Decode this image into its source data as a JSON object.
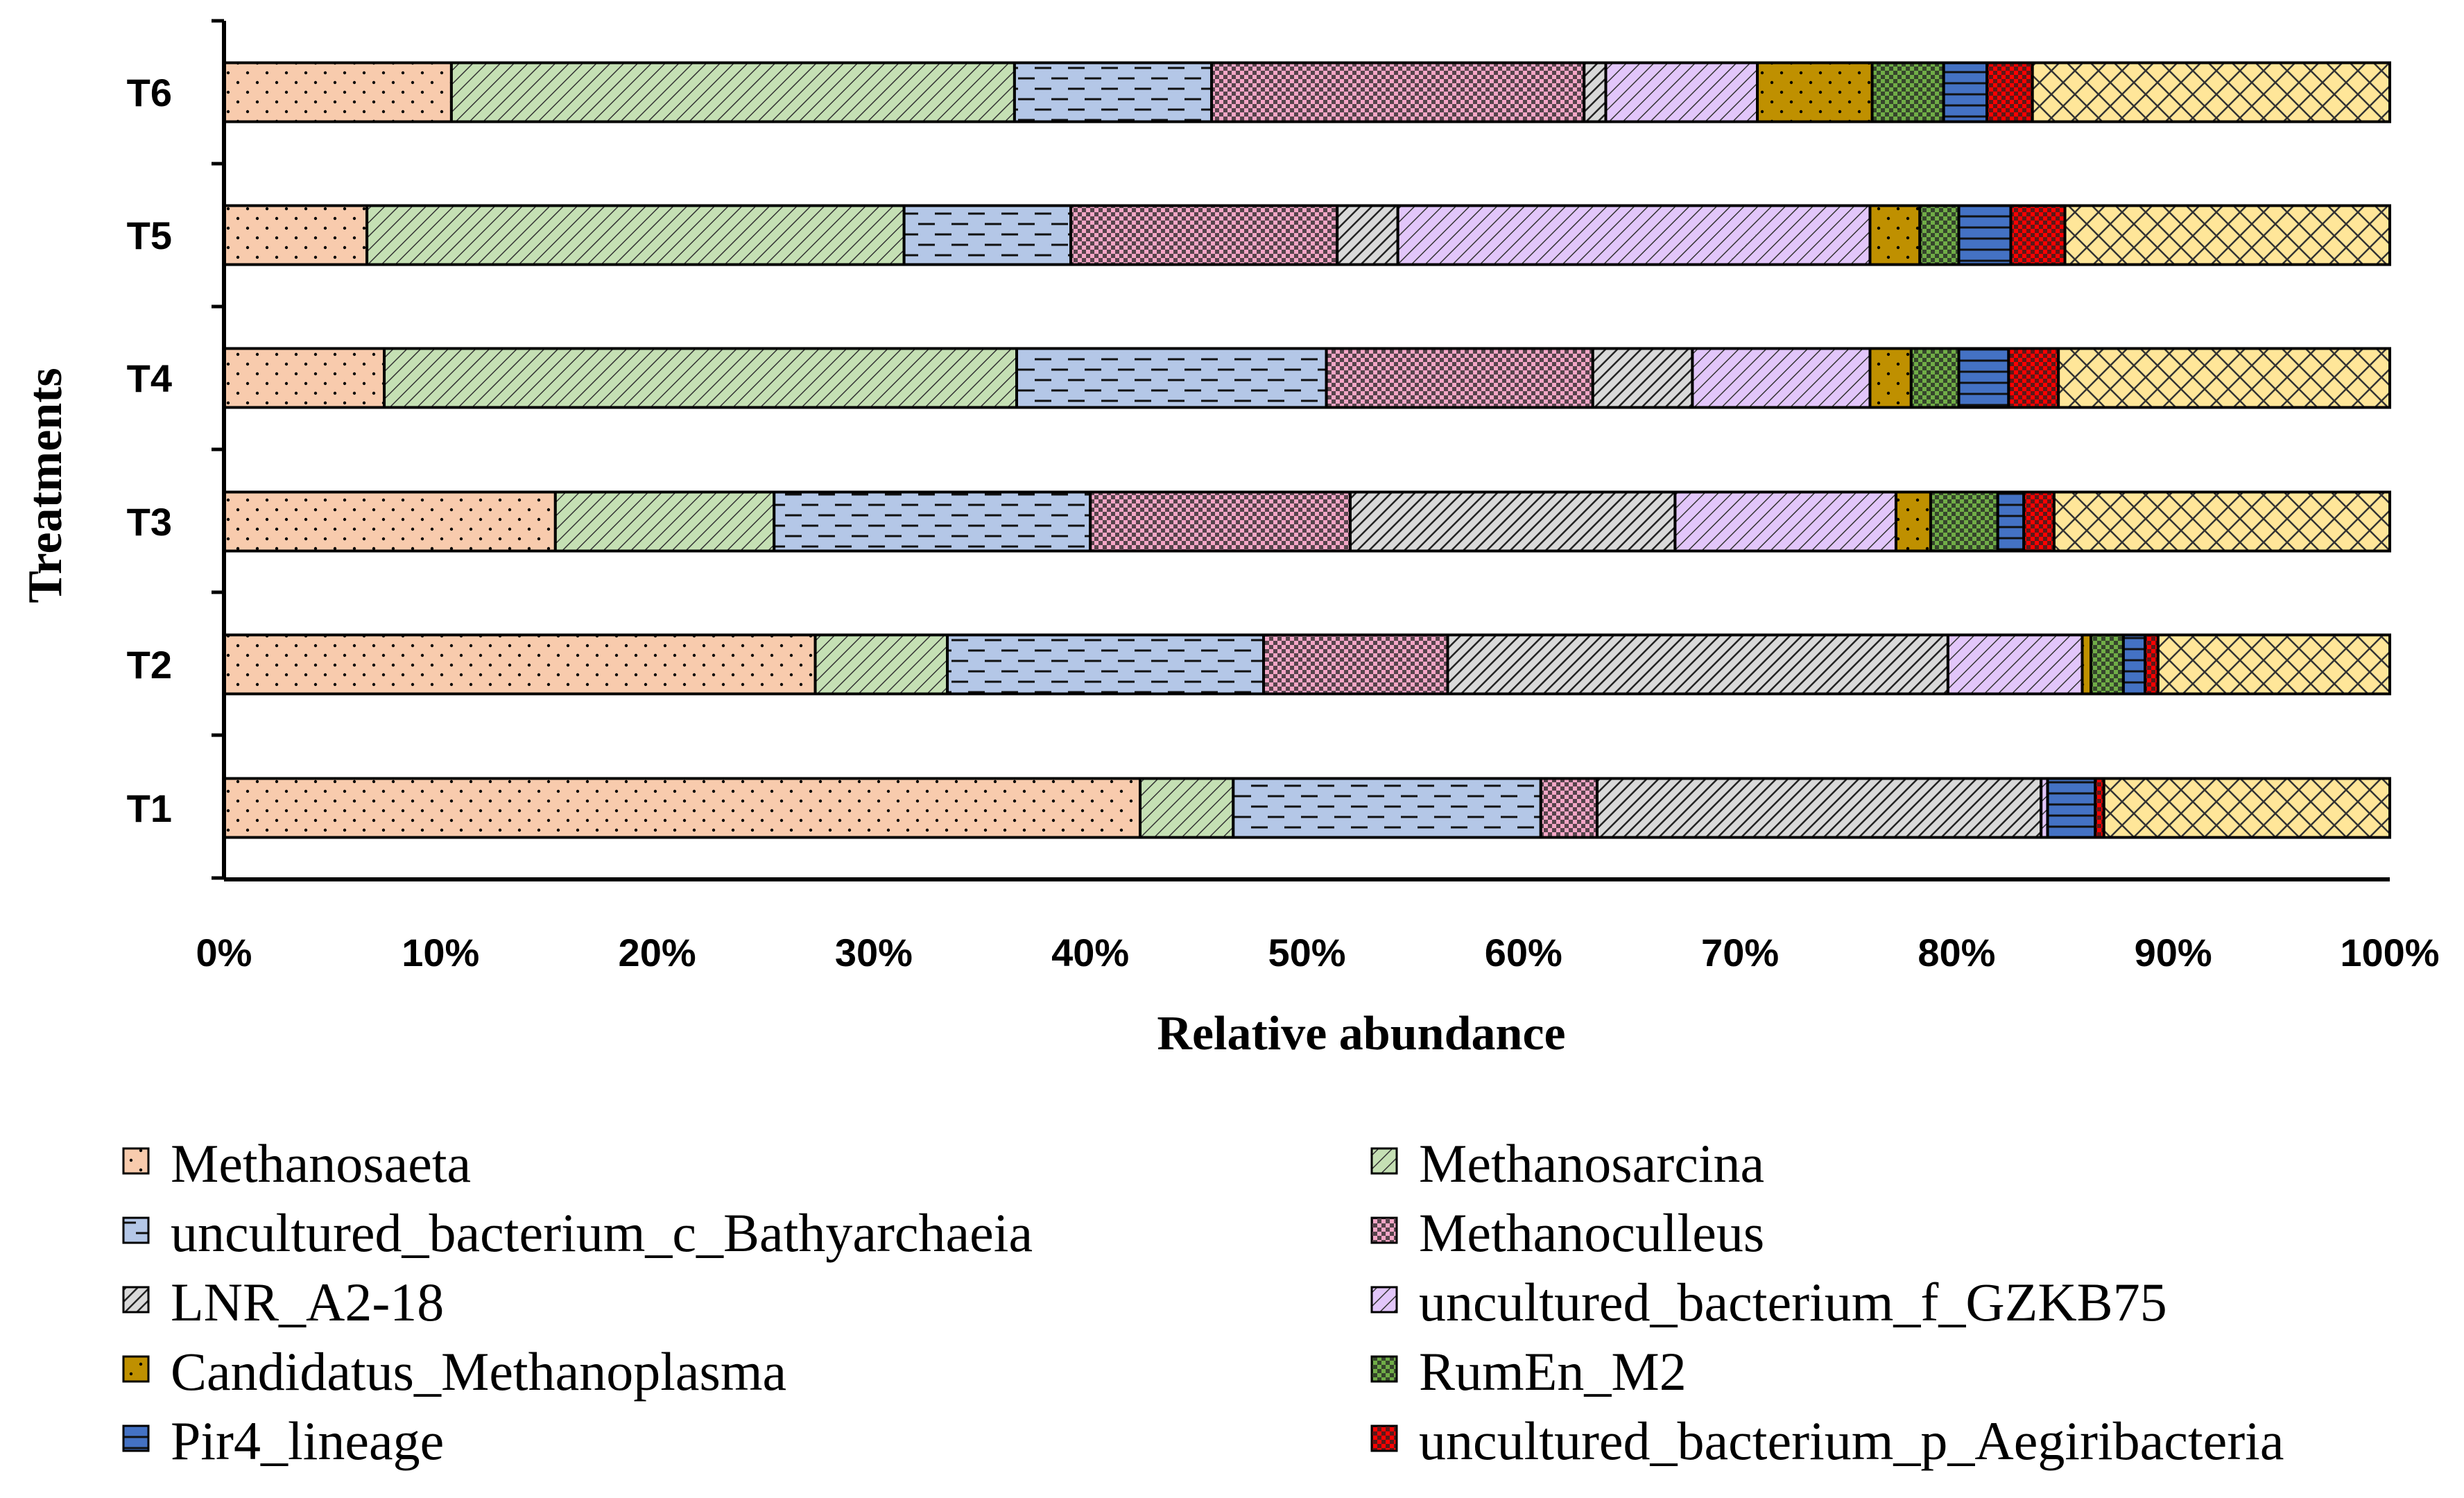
{
  "chart_data": {
    "type": "bar",
    "orientation": "horizontal",
    "stacked": "percent",
    "categories": [
      "T1",
      "T2",
      "T3",
      "T4",
      "T5",
      "T6"
    ],
    "series": [
      {
        "name": "Methanosaeta",
        "color": "#F8CBAD",
        "pattern": "dots",
        "values": [
          42.3,
          27.3,
          15.3,
          7.4,
          6.6,
          10.5
        ]
      },
      {
        "name": "Methanosarcina",
        "color": "#C5E0B4",
        "pattern": "diagonal-lines",
        "values": [
          4.3,
          6.1,
          10.1,
          29.2,
          24.8,
          26.0
        ]
      },
      {
        "name": "uncultured_bacterium_c_Bathyarchaeia",
        "color": "#B4C7E7",
        "pattern": "dashes",
        "values": [
          14.2,
          14.6,
          14.6,
          14.3,
          7.7,
          9.1
        ]
      },
      {
        "name": "Methanoculleus",
        "color": "#F4A6C6",
        "pattern": "checker",
        "values": [
          2.6,
          8.5,
          12.0,
          12.3,
          12.3,
          17.2
        ]
      },
      {
        "name": "LNR_A2-18",
        "color": "#8A8A8A",
        "pattern": "dark-diagonal",
        "values": [
          20.5,
          23.1,
          15.0,
          4.6,
          2.8,
          1.0
        ]
      },
      {
        "name": "uncultured_bacterium_f_GZKB75",
        "color": "#E2C6FA",
        "pattern": "diagonal-lines",
        "values": [
          0.3,
          6.2,
          10.2,
          8.2,
          21.8,
          7.0
        ]
      },
      {
        "name": "Candidatus_Methanoplasma",
        "color": "#BF9000",
        "pattern": "dots",
        "values": [
          0.0,
          0.4,
          1.6,
          1.9,
          2.3,
          5.3
        ]
      },
      {
        "name": "RumEn_M2",
        "color": "#70AD47",
        "pattern": "checker",
        "values": [
          0.0,
          1.5,
          3.1,
          2.2,
          1.8,
          3.3
        ]
      },
      {
        "name": "Pir4_lineage",
        "color": "#4472C4",
        "pattern": "horizontal-lines",
        "values": [
          2.2,
          1.0,
          1.2,
          2.3,
          2.4,
          2.0
        ]
      },
      {
        "name": "uncultured_bacterium_p_Aegiribacteria",
        "color": "#FF0000",
        "pattern": "checker",
        "values": [
          0.4,
          0.6,
          1.4,
          2.3,
          2.5,
          2.1
        ]
      },
      {
        "name": "",
        "color": "#FFE699",
        "pattern": "crosshatch",
        "values": [
          13.2,
          10.7,
          15.5,
          15.3,
          15.0,
          16.5
        ]
      }
    ],
    "xlabel": "Relative abundance",
    "ylabel": "Treatments",
    "xlim": [
      0,
      100
    ],
    "x_tick_labels": [
      "0%",
      "10%",
      "20%",
      "30%",
      "40%",
      "50%",
      "60%",
      "70%",
      "80%",
      "90%",
      "100%"
    ],
    "grid": false,
    "legend_position": "bottom"
  }
}
